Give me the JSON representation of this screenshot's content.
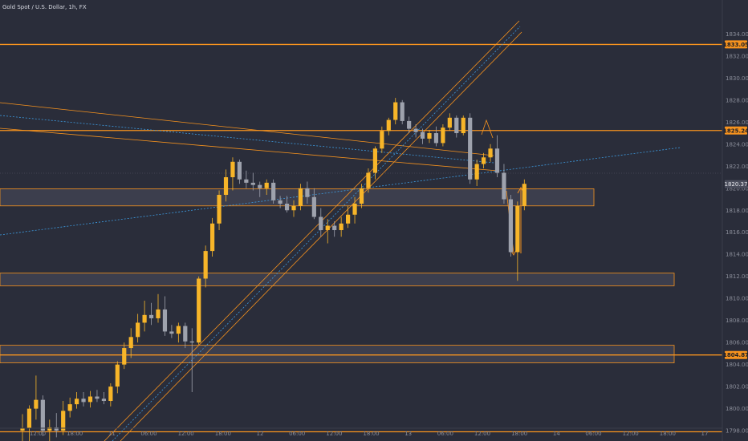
{
  "chart_title": "Gold Spot / U.S. Dollar, 1h, FX",
  "colors": {
    "background": "#2a2d3a",
    "bull": "#f7b529",
    "bear": "#9ea2ad",
    "level": "#f7931e",
    "zone_fill": "#4a4d5c",
    "dotted": "#3d9be0",
    "axis_text": "#8a8d99"
  },
  "chart_data": {
    "type": "candlestick",
    "title": "Gold Spot / U.S. Dollar, 1h, FX",
    "y_axis": {
      "ticks": [
        "1834.00",
        "1832.00",
        "1830.00",
        "1828.00",
        "1826.00",
        "1824.00",
        "1822.00",
        "1820.00",
        "1818.00",
        "1816.00",
        "1814.00",
        "1812.00",
        "1810.00",
        "1808.00",
        "1806.00",
        "1804.00",
        "1802.00",
        "1800.00",
        "1798.00"
      ],
      "range": [
        1797.5,
        1836.5
      ]
    },
    "x_axis": {
      "ticks": [
        "12:00",
        "18:00",
        "11",
        "06:00",
        "12:00",
        "18:00",
        "12",
        "06:00",
        "12:00",
        "18:00",
        "13",
        "06:00",
        "12:00",
        "18:00",
        "14",
        "06:00",
        "12:00",
        "18:00",
        "17"
      ]
    },
    "price_tags": [
      {
        "label": "1833.05",
        "value": 1833.05,
        "style": "orange"
      },
      {
        "label": "1825.24",
        "value": 1825.24,
        "style": "orange"
      },
      {
        "label": "1820.37",
        "value": 1820.37,
        "style": "grey"
      },
      {
        "label": "1804.87",
        "value": 1804.87,
        "style": "orange"
      }
    ],
    "horizontal_levels": [
      1833.05,
      1825.24,
      1804.87,
      1797.9
    ],
    "zones": [
      {
        "top": 1819.95,
        "bottom": 1818.4,
        "extends_to": "right-near"
      },
      {
        "top": 1812.3,
        "bottom": 1811.15,
        "extends_to": "right-far"
      },
      {
        "top": 1805.75,
        "bottom": 1804.15,
        "extends_to": "right-far"
      }
    ],
    "candles": [
      {
        "o": 1798.0,
        "h": 1799.5,
        "l": 1797.0,
        "c": 1798.2
      },
      {
        "o": 1798.2,
        "h": 1800.3,
        "l": 1797.0,
        "c": 1800.0
      },
      {
        "o": 1800.0,
        "h": 1803.0,
        "l": 1799.0,
        "c": 1800.8
      },
      {
        "o": 1800.8,
        "h": 1801.2,
        "l": 1797.5,
        "c": 1798.0
      },
      {
        "o": 1798.0,
        "h": 1799.0,
        "l": 1797.0,
        "c": 1798.3
      },
      {
        "o": 1798.3,
        "h": 1799.6,
        "l": 1797.4,
        "c": 1798.0
      },
      {
        "o": 1798.0,
        "h": 1800.7,
        "l": 1797.6,
        "c": 1799.8
      },
      {
        "o": 1799.8,
        "h": 1801.0,
        "l": 1799.2,
        "c": 1800.4
      },
      {
        "o": 1800.4,
        "h": 1801.5,
        "l": 1800.0,
        "c": 1800.9
      },
      {
        "o": 1800.9,
        "h": 1801.5,
        "l": 1800.2,
        "c": 1800.6
      },
      {
        "o": 1800.6,
        "h": 1801.6,
        "l": 1800.1,
        "c": 1801.1
      },
      {
        "o": 1801.1,
        "h": 1801.7,
        "l": 1800.6,
        "c": 1800.9
      },
      {
        "o": 1800.9,
        "h": 1801.5,
        "l": 1800.4,
        "c": 1800.7
      },
      {
        "o": 1800.7,
        "h": 1802.3,
        "l": 1800.2,
        "c": 1802.0
      },
      {
        "o": 1802.0,
        "h": 1804.3,
        "l": 1801.4,
        "c": 1804.0
      },
      {
        "o": 1804.0,
        "h": 1806.0,
        "l": 1803.6,
        "c": 1805.5
      },
      {
        "o": 1805.5,
        "h": 1807.3,
        "l": 1804.6,
        "c": 1806.5
      },
      {
        "o": 1806.5,
        "h": 1808.6,
        "l": 1806.0,
        "c": 1807.8
      },
      {
        "o": 1807.8,
        "h": 1809.8,
        "l": 1807.0,
        "c": 1808.5
      },
      {
        "o": 1808.5,
        "h": 1809.6,
        "l": 1807.6,
        "c": 1808.2
      },
      {
        "o": 1808.2,
        "h": 1810.4,
        "l": 1807.8,
        "c": 1809.0
      },
      {
        "o": 1809.0,
        "h": 1810.2,
        "l": 1806.6,
        "c": 1807.0
      },
      {
        "o": 1807.0,
        "h": 1807.6,
        "l": 1806.4,
        "c": 1806.8
      },
      {
        "o": 1806.8,
        "h": 1807.8,
        "l": 1806.0,
        "c": 1807.5
      },
      {
        "o": 1807.5,
        "h": 1807.8,
        "l": 1805.5,
        "c": 1806.1
      },
      {
        "o": 1806.1,
        "h": 1807.3,
        "l": 1801.5,
        "c": 1806.0
      },
      {
        "o": 1806.0,
        "h": 1812.0,
        "l": 1805.8,
        "c": 1811.8
      },
      {
        "o": 1811.8,
        "h": 1814.8,
        "l": 1811.0,
        "c": 1814.3
      },
      {
        "o": 1814.3,
        "h": 1817.3,
        "l": 1813.8,
        "c": 1816.8
      },
      {
        "o": 1816.8,
        "h": 1819.8,
        "l": 1816.2,
        "c": 1819.4
      },
      {
        "o": 1819.4,
        "h": 1821.7,
        "l": 1818.8,
        "c": 1821.0
      },
      {
        "o": 1821.0,
        "h": 1822.8,
        "l": 1819.8,
        "c": 1822.4
      },
      {
        "o": 1822.4,
        "h": 1822.6,
        "l": 1820.4,
        "c": 1820.8
      },
      {
        "o": 1820.8,
        "h": 1821.6,
        "l": 1820.0,
        "c": 1820.5
      },
      {
        "o": 1820.5,
        "h": 1821.4,
        "l": 1819.8,
        "c": 1820.3
      },
      {
        "o": 1820.3,
        "h": 1820.6,
        "l": 1819.2,
        "c": 1820.0
      },
      {
        "o": 1820.0,
        "h": 1820.8,
        "l": 1819.4,
        "c": 1820.5
      },
      {
        "o": 1820.5,
        "h": 1820.8,
        "l": 1818.6,
        "c": 1818.9
      },
      {
        "o": 1818.9,
        "h": 1819.3,
        "l": 1818.2,
        "c": 1818.6
      },
      {
        "o": 1818.6,
        "h": 1819.3,
        "l": 1817.8,
        "c": 1818.0
      },
      {
        "o": 1818.0,
        "h": 1818.9,
        "l": 1817.4,
        "c": 1818.4
      },
      {
        "o": 1818.4,
        "h": 1820.4,
        "l": 1818.0,
        "c": 1820.0
      },
      {
        "o": 1820.0,
        "h": 1820.6,
        "l": 1818.6,
        "c": 1819.2
      },
      {
        "o": 1819.2,
        "h": 1820.0,
        "l": 1817.2,
        "c": 1817.4
      },
      {
        "o": 1817.4,
        "h": 1818.2,
        "l": 1815.6,
        "c": 1816.2
      },
      {
        "o": 1816.2,
        "h": 1817.2,
        "l": 1815.0,
        "c": 1816.6
      },
      {
        "o": 1816.6,
        "h": 1817.0,
        "l": 1815.6,
        "c": 1816.2
      },
      {
        "o": 1816.2,
        "h": 1817.4,
        "l": 1815.6,
        "c": 1816.8
      },
      {
        "o": 1816.8,
        "h": 1818.4,
        "l": 1816.4,
        "c": 1817.6
      },
      {
        "o": 1817.6,
        "h": 1819.2,
        "l": 1816.8,
        "c": 1818.6
      },
      {
        "o": 1818.6,
        "h": 1820.4,
        "l": 1818.2,
        "c": 1820.0
      },
      {
        "o": 1820.0,
        "h": 1821.8,
        "l": 1819.6,
        "c": 1821.4
      },
      {
        "o": 1821.4,
        "h": 1823.8,
        "l": 1820.8,
        "c": 1823.6
      },
      {
        "o": 1823.6,
        "h": 1825.6,
        "l": 1823.2,
        "c": 1825.2
      },
      {
        "o": 1825.2,
        "h": 1826.4,
        "l": 1824.8,
        "c": 1826.2
      },
      {
        "o": 1826.2,
        "h": 1828.2,
        "l": 1825.8,
        "c": 1827.8
      },
      {
        "o": 1827.8,
        "h": 1828.0,
        "l": 1825.8,
        "c": 1826.1
      },
      {
        "o": 1826.1,
        "h": 1826.5,
        "l": 1825.0,
        "c": 1825.4
      },
      {
        "o": 1825.4,
        "h": 1825.8,
        "l": 1824.6,
        "c": 1825.1
      },
      {
        "o": 1825.1,
        "h": 1825.4,
        "l": 1824.0,
        "c": 1824.5
      },
      {
        "o": 1824.5,
        "h": 1825.3,
        "l": 1824.1,
        "c": 1825.0
      },
      {
        "o": 1825.0,
        "h": 1825.6,
        "l": 1823.8,
        "c": 1824.1
      },
      {
        "o": 1824.1,
        "h": 1825.8,
        "l": 1823.8,
        "c": 1825.5
      },
      {
        "o": 1825.5,
        "h": 1826.8,
        "l": 1825.2,
        "c": 1826.4
      },
      {
        "o": 1826.4,
        "h": 1826.6,
        "l": 1824.6,
        "c": 1825.0
      },
      {
        "o": 1825.0,
        "h": 1826.6,
        "l": 1824.8,
        "c": 1826.4
      },
      {
        "o": 1826.4,
        "h": 1826.8,
        "l": 1820.4,
        "c": 1820.8
      },
      {
        "o": 1820.8,
        "h": 1822.6,
        "l": 1820.2,
        "c": 1822.2
      },
      {
        "o": 1822.2,
        "h": 1823.2,
        "l": 1821.8,
        "c": 1822.8
      },
      {
        "o": 1822.8,
        "h": 1824.0,
        "l": 1822.4,
        "c": 1823.6
      },
      {
        "o": 1823.6,
        "h": 1824.8,
        "l": 1821.0,
        "c": 1821.4
      },
      {
        "o": 1821.4,
        "h": 1822.2,
        "l": 1818.6,
        "c": 1819.0
      },
      {
        "o": 1819.0,
        "h": 1819.4,
        "l": 1813.8,
        "c": 1814.2
      },
      {
        "o": 1814.2,
        "h": 1818.8,
        "l": 1811.6,
        "c": 1818.4
      },
      {
        "o": 1818.4,
        "h": 1820.8,
        "l": 1818.0,
        "c": 1820.4
      }
    ]
  }
}
